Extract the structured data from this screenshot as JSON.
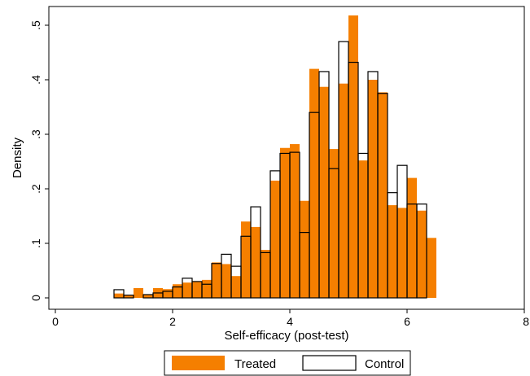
{
  "chart_data": {
    "type": "bar",
    "subtype": "overlaid-histogram",
    "title": "",
    "xlabel": "Self-efficacy (post-test)",
    "ylabel": "Density",
    "xlim": [
      0,
      8
    ],
    "ylim": [
      0,
      0.5
    ],
    "x_ticks": [
      0,
      2,
      4,
      6,
      8
    ],
    "x_tick_labels": [
      "0",
      "2",
      "4",
      "6",
      "8"
    ],
    "y_ticks": [
      0,
      0.1,
      0.2,
      0.3,
      0.4,
      0.5
    ],
    "y_tick_labels": [
      "0",
      ".1",
      ".2",
      ".3",
      ".4",
      ".5"
    ],
    "bin_width": 0.1667,
    "bin_starts": [
      1.0,
      1.1667,
      1.3333,
      1.5,
      1.6667,
      1.8333,
      2.0,
      2.1667,
      2.3333,
      2.5,
      2.6667,
      2.8333,
      3.0,
      3.1667,
      3.3333,
      3.5,
      3.6667,
      3.8333,
      4.0,
      4.1667,
      4.3333,
      4.5,
      4.6667,
      4.8333,
      5.0,
      5.1667,
      5.3333,
      5.5,
      5.6667,
      5.8333,
      6.0,
      6.1667,
      6.3333,
      6.5,
      6.6667,
      6.8333
    ],
    "series": [
      {
        "name": "Treated",
        "color": "#f57f00",
        "style": "filled",
        "values": [
          0.008,
          0.005,
          0.018,
          0.006,
          0.018,
          0.016,
          0.025,
          0.028,
          0.03,
          0.033,
          0.065,
          0.062,
          0.04,
          0.14,
          0.13,
          0.088,
          0.215,
          0.275,
          0.282,
          0.178,
          0.42,
          0.387,
          0.273,
          0.393,
          0.518,
          0.252,
          0.4,
          0.377,
          0.17,
          0.165,
          0.22,
          0.16,
          0.11,
          0,
          0,
          0
        ]
      },
      {
        "name": "Control",
        "color": "#000000",
        "style": "outline",
        "values": [
          0.015,
          0.005,
          0,
          0.006,
          0.009,
          0.012,
          0.02,
          0.036,
          0.03,
          0.025,
          0.063,
          0.08,
          0.058,
          0.113,
          0.167,
          0.083,
          0.233,
          0.265,
          0.267,
          0.12,
          0.34,
          0.415,
          0.237,
          0.47,
          0.432,
          0.265,
          0.415,
          0.375,
          0.193,
          0.243,
          0.172,
          0.172,
          0,
          0,
          0,
          0
        ]
      }
    ],
    "legend": {
      "position": "bottom-center",
      "entries": [
        "Treated",
        "Control"
      ]
    },
    "grid": false
  }
}
